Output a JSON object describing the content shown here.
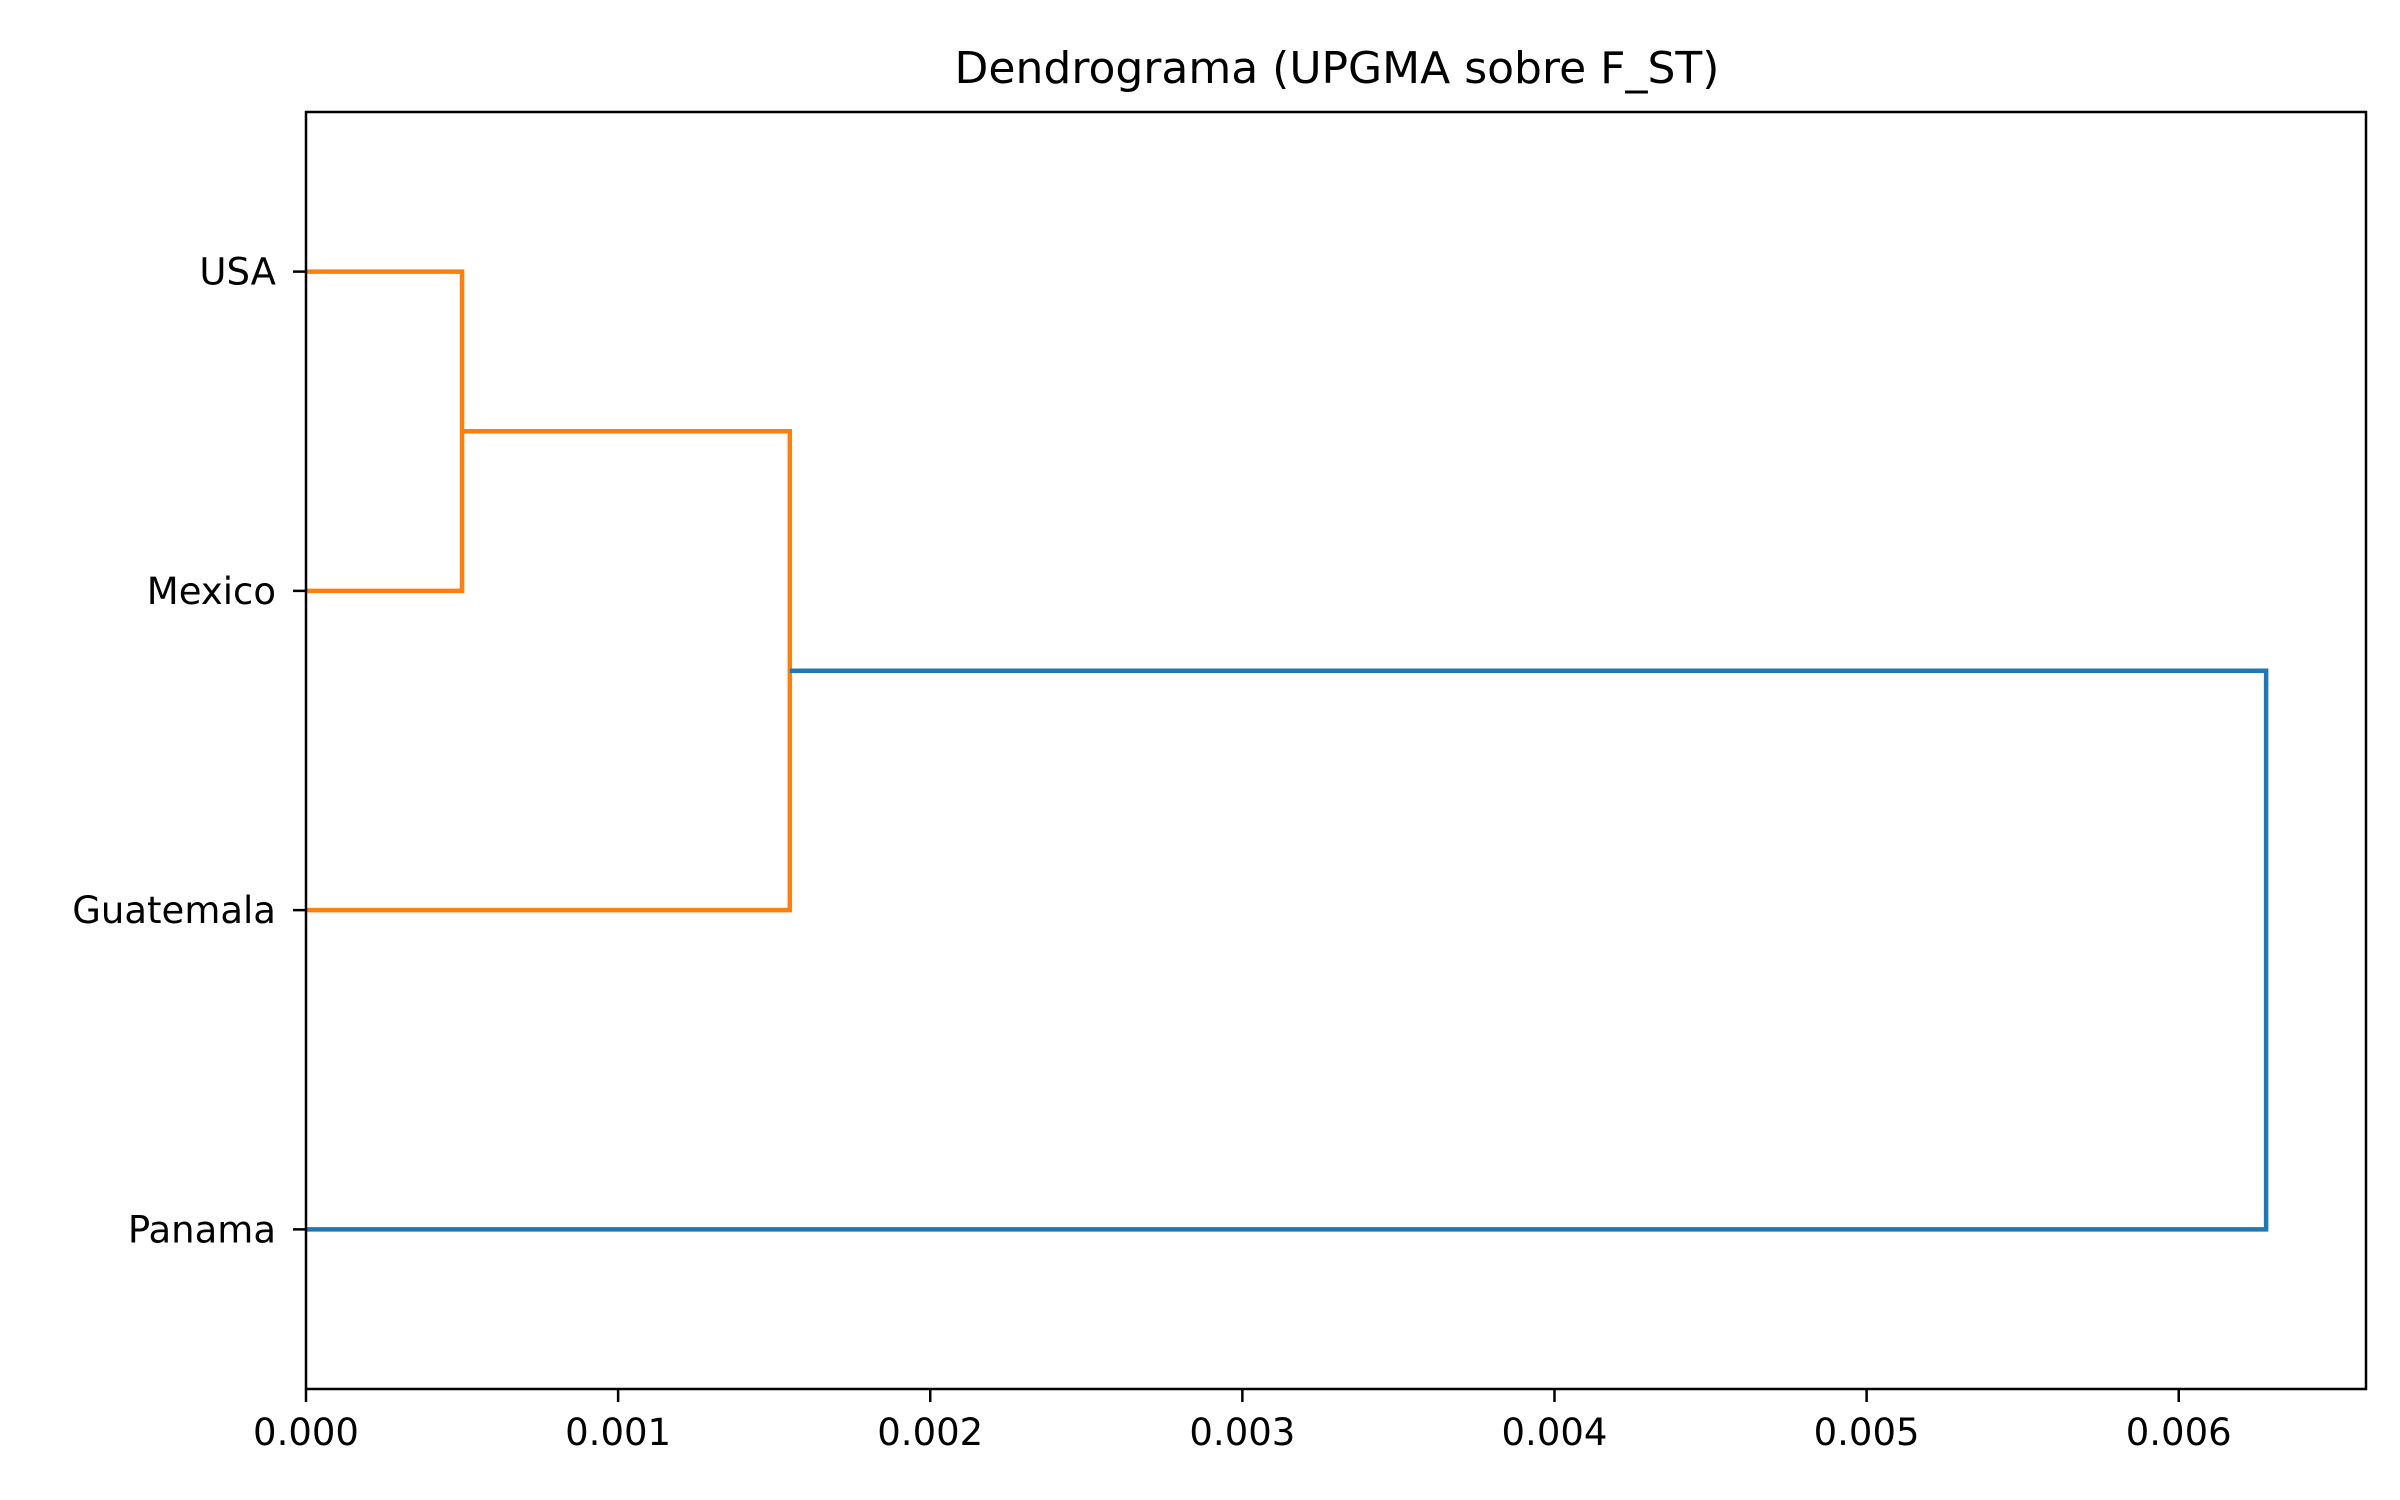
{
  "chart_data": {
    "type": "dendrogram",
    "orientation": "horizontal",
    "title": "Dendrograma (UPGMA sobre F_ST)",
    "xlabel": "",
    "ylabel": "",
    "xlim": [
      0.0,
      0.0066
    ],
    "x_ticks": [
      0.0,
      0.001,
      0.002,
      0.003,
      0.004,
      0.005,
      0.006
    ],
    "x_tick_labels": [
      "0.000",
      "0.001",
      "0.002",
      "0.003",
      "0.004",
      "0.005",
      "0.006"
    ],
    "leaves": [
      "USA",
      "Mexico",
      "Guatemala",
      "Panama"
    ],
    "merges": [
      {
        "children": [
          "USA",
          "Mexico"
        ],
        "height": 0.0005,
        "color": "#ff7f0e"
      },
      {
        "children": [
          "USA+Mexico",
          "Guatemala"
        ],
        "height": 0.00155,
        "color": "#ff7f0e"
      },
      {
        "children": [
          "USA+Mexico+Guatemala",
          "Panama"
        ],
        "height": 0.00628,
        "color": "#1f77b4"
      }
    ],
    "grid": false,
    "legend": "none"
  }
}
